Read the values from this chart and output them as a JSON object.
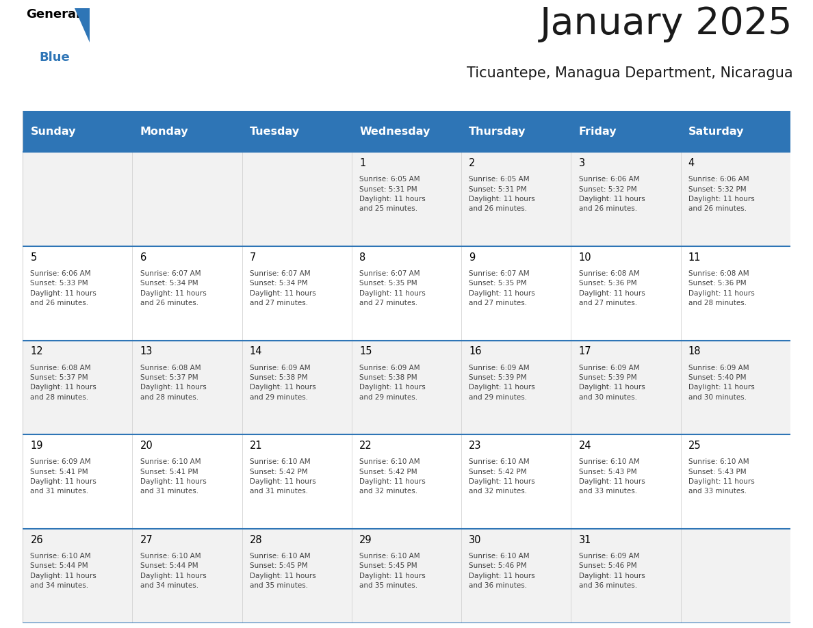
{
  "title": "January 2025",
  "subtitle": "Ticuantepe, Managua Department, Nicaragua",
  "days_of_week": [
    "Sunday",
    "Monday",
    "Tuesday",
    "Wednesday",
    "Thursday",
    "Friday",
    "Saturday"
  ],
  "header_bg": "#2E75B6",
  "header_text_color": "#FFFFFF",
  "row_bg_odd": "#F2F2F2",
  "row_bg_even": "#FFFFFF",
  "cell_border_color": "#2E75B6",
  "day_num_color": "#000000",
  "info_text_color": "#404040",
  "title_color": "#1a1a1a",
  "subtitle_color": "#1a1a1a",
  "logo_general_color": "#000000",
  "logo_blue_color": "#2E75B6",
  "logo_triangle_color": "#2E75B6",
  "calendar_data": [
    [
      {
        "day": 0,
        "info": ""
      },
      {
        "day": 0,
        "info": ""
      },
      {
        "day": 0,
        "info": ""
      },
      {
        "day": 1,
        "info": "Sunrise: 6:05 AM\nSunset: 5:31 PM\nDaylight: 11 hours\nand 25 minutes."
      },
      {
        "day": 2,
        "info": "Sunrise: 6:05 AM\nSunset: 5:31 PM\nDaylight: 11 hours\nand 26 minutes."
      },
      {
        "day": 3,
        "info": "Sunrise: 6:06 AM\nSunset: 5:32 PM\nDaylight: 11 hours\nand 26 minutes."
      },
      {
        "day": 4,
        "info": "Sunrise: 6:06 AM\nSunset: 5:32 PM\nDaylight: 11 hours\nand 26 minutes."
      }
    ],
    [
      {
        "day": 5,
        "info": "Sunrise: 6:06 AM\nSunset: 5:33 PM\nDaylight: 11 hours\nand 26 minutes."
      },
      {
        "day": 6,
        "info": "Sunrise: 6:07 AM\nSunset: 5:34 PM\nDaylight: 11 hours\nand 26 minutes."
      },
      {
        "day": 7,
        "info": "Sunrise: 6:07 AM\nSunset: 5:34 PM\nDaylight: 11 hours\nand 27 minutes."
      },
      {
        "day": 8,
        "info": "Sunrise: 6:07 AM\nSunset: 5:35 PM\nDaylight: 11 hours\nand 27 minutes."
      },
      {
        "day": 9,
        "info": "Sunrise: 6:07 AM\nSunset: 5:35 PM\nDaylight: 11 hours\nand 27 minutes."
      },
      {
        "day": 10,
        "info": "Sunrise: 6:08 AM\nSunset: 5:36 PM\nDaylight: 11 hours\nand 27 minutes."
      },
      {
        "day": 11,
        "info": "Sunrise: 6:08 AM\nSunset: 5:36 PM\nDaylight: 11 hours\nand 28 minutes."
      }
    ],
    [
      {
        "day": 12,
        "info": "Sunrise: 6:08 AM\nSunset: 5:37 PM\nDaylight: 11 hours\nand 28 minutes."
      },
      {
        "day": 13,
        "info": "Sunrise: 6:08 AM\nSunset: 5:37 PM\nDaylight: 11 hours\nand 28 minutes."
      },
      {
        "day": 14,
        "info": "Sunrise: 6:09 AM\nSunset: 5:38 PM\nDaylight: 11 hours\nand 29 minutes."
      },
      {
        "day": 15,
        "info": "Sunrise: 6:09 AM\nSunset: 5:38 PM\nDaylight: 11 hours\nand 29 minutes."
      },
      {
        "day": 16,
        "info": "Sunrise: 6:09 AM\nSunset: 5:39 PM\nDaylight: 11 hours\nand 29 minutes."
      },
      {
        "day": 17,
        "info": "Sunrise: 6:09 AM\nSunset: 5:39 PM\nDaylight: 11 hours\nand 30 minutes."
      },
      {
        "day": 18,
        "info": "Sunrise: 6:09 AM\nSunset: 5:40 PM\nDaylight: 11 hours\nand 30 minutes."
      }
    ],
    [
      {
        "day": 19,
        "info": "Sunrise: 6:09 AM\nSunset: 5:41 PM\nDaylight: 11 hours\nand 31 minutes."
      },
      {
        "day": 20,
        "info": "Sunrise: 6:10 AM\nSunset: 5:41 PM\nDaylight: 11 hours\nand 31 minutes."
      },
      {
        "day": 21,
        "info": "Sunrise: 6:10 AM\nSunset: 5:42 PM\nDaylight: 11 hours\nand 31 minutes."
      },
      {
        "day": 22,
        "info": "Sunrise: 6:10 AM\nSunset: 5:42 PM\nDaylight: 11 hours\nand 32 minutes."
      },
      {
        "day": 23,
        "info": "Sunrise: 6:10 AM\nSunset: 5:42 PM\nDaylight: 11 hours\nand 32 minutes."
      },
      {
        "day": 24,
        "info": "Sunrise: 6:10 AM\nSunset: 5:43 PM\nDaylight: 11 hours\nand 33 minutes."
      },
      {
        "day": 25,
        "info": "Sunrise: 6:10 AM\nSunset: 5:43 PM\nDaylight: 11 hours\nand 33 minutes."
      }
    ],
    [
      {
        "day": 26,
        "info": "Sunrise: 6:10 AM\nSunset: 5:44 PM\nDaylight: 11 hours\nand 34 minutes."
      },
      {
        "day": 27,
        "info": "Sunrise: 6:10 AM\nSunset: 5:44 PM\nDaylight: 11 hours\nand 34 minutes."
      },
      {
        "day": 28,
        "info": "Sunrise: 6:10 AM\nSunset: 5:45 PM\nDaylight: 11 hours\nand 35 minutes."
      },
      {
        "day": 29,
        "info": "Sunrise: 6:10 AM\nSunset: 5:45 PM\nDaylight: 11 hours\nand 35 minutes."
      },
      {
        "day": 30,
        "info": "Sunrise: 6:10 AM\nSunset: 5:46 PM\nDaylight: 11 hours\nand 36 minutes."
      },
      {
        "day": 31,
        "info": "Sunrise: 6:09 AM\nSunset: 5:46 PM\nDaylight: 11 hours\nand 36 minutes."
      },
      {
        "day": 0,
        "info": ""
      }
    ]
  ]
}
